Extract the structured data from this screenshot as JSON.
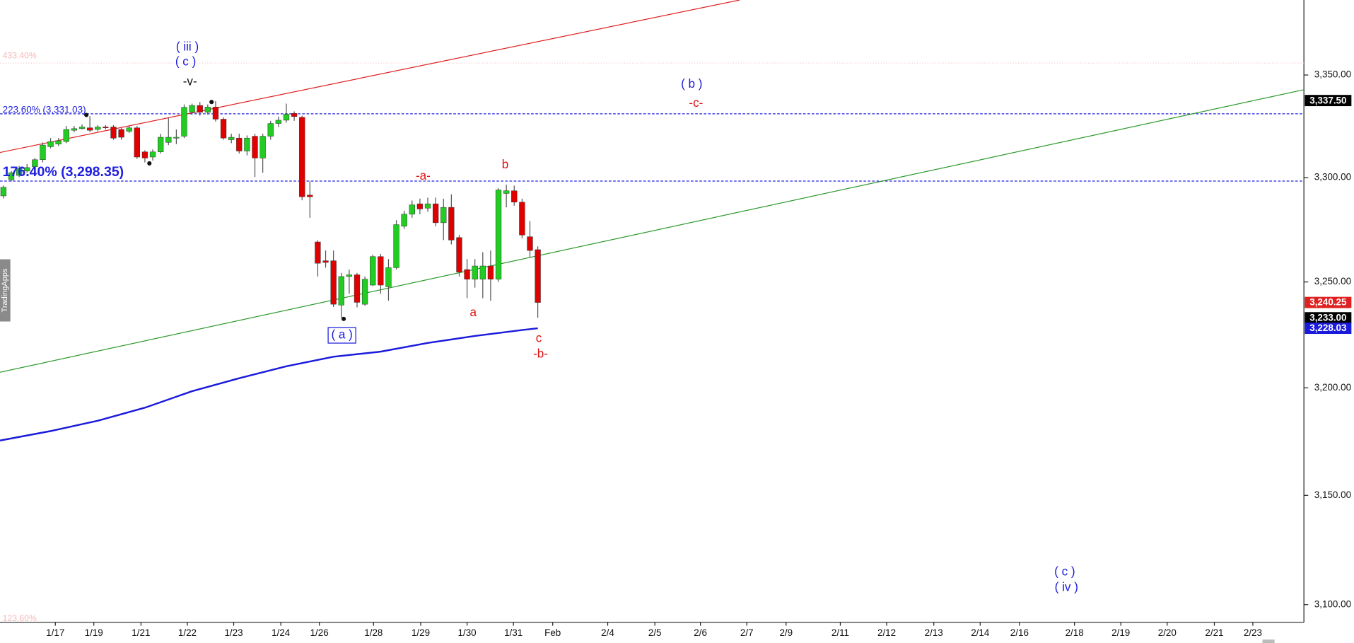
{
  "chart_data": {
    "type": "candlestick",
    "watermark": "TradingApps",
    "log_scale": true,
    "xlim": [
      -0.44,
      165.5
    ],
    "xticks": [
      {
        "value": 6.6,
        "label": "1/17"
      },
      {
        "value": 11.5,
        "label": "1/19"
      },
      {
        "value": 17.5,
        "label": "1/21"
      },
      {
        "value": 23.4,
        "label": "1/22"
      },
      {
        "value": 29.3,
        "label": "1/23"
      },
      {
        "value": 35.3,
        "label": "1/24"
      },
      {
        "value": 40.2,
        "label": "1/26"
      },
      {
        "value": 47.1,
        "label": "1/28"
      },
      {
        "value": 53.1,
        "label": "1/29"
      },
      {
        "value": 59.0,
        "label": "1/30"
      },
      {
        "value": 64.9,
        "label": "1/31"
      },
      {
        "value": 69.9,
        "label": "Feb"
      },
      {
        "value": 76.9,
        "label": "2/4"
      },
      {
        "value": 82.9,
        "label": "2/5"
      },
      {
        "value": 88.7,
        "label": "2/6"
      },
      {
        "value": 94.6,
        "label": "2/7"
      },
      {
        "value": 99.6,
        "label": "2/9"
      },
      {
        "value": 106.5,
        "label": "2/11"
      },
      {
        "value": 112.4,
        "label": "2/12"
      },
      {
        "value": 118.4,
        "label": "2/13"
      },
      {
        "value": 124.3,
        "label": "2/14"
      },
      {
        "value": 129.3,
        "label": "2/16"
      },
      {
        "value": 136.3,
        "label": "2/18"
      },
      {
        "value": 142.2,
        "label": "2/19"
      },
      {
        "value": 148.1,
        "label": "2/20"
      },
      {
        "value": 154.1,
        "label": "2/21"
      },
      {
        "value": 159.0,
        "label": "2/23"
      }
    ],
    "ylim": [
      3092,
      3387
    ],
    "yticks": [
      {
        "value": 3100,
        "label": "3,100.00"
      },
      {
        "value": 3150,
        "label": "3,150.00"
      },
      {
        "value": 3200,
        "label": "3,200.00"
      },
      {
        "value": 3250,
        "label": "3,250.00"
      },
      {
        "value": 3300,
        "label": "3,300.00"
      },
      {
        "value": 3350,
        "label": "3,350.00"
      }
    ],
    "up_color": "#22cc22",
    "down_color": "#e00000",
    "x": [
      0,
      1,
      2,
      3,
      4,
      5,
      6,
      7,
      8,
      9,
      10,
      11,
      12,
      13,
      14,
      15,
      16,
      17,
      18,
      19,
      20,
      21,
      22,
      23,
      24,
      25,
      26,
      27,
      28,
      29,
      30,
      31,
      32,
      33,
      34,
      35,
      36,
      37,
      38,
      39,
      40,
      41,
      42,
      43,
      44,
      45,
      46,
      47,
      48,
      49,
      50,
      51,
      52,
      53,
      54,
      55,
      56,
      57,
      58,
      59,
      60,
      61,
      62,
      63,
      64,
      65,
      66,
      67,
      68
    ],
    "open": [
      3291.2,
      3299,
      3301.1,
      3303.2,
      3305.3,
      3308.7,
      3315,
      3316.3,
      3317.5,
      3323,
      3323.8,
      3324.2,
      3323.4,
      3324.6,
      3324.6,
      3323.4,
      3322.5,
      3324.2,
      3312.5,
      3310,
      3312.5,
      3317.1,
      3319.2,
      3320.1,
      3331.8,
      3335.1,
      3331.8,
      3334.3,
      3328.4,
      3318.4,
      3319.2,
      3312.9,
      3320.1,
      3309.5,
      3320.1,
      3326.3,
      3327.9,
      3331.2,
      3329.3,
      3291.6,
      3269.1,
      3260.1,
      3260.1,
      3239,
      3252.6,
      3253.4,
      3239.4,
      3248.5,
      3262.1,
      3247.7,
      3256.8,
      3276.6,
      3282.4,
      3287.4,
      3285.3,
      3287.4,
      3278.3,
      3285.7,
      3271.2,
      3255.9,
      3251.3,
      3251.3,
      3257.6,
      3251.3,
      3292.4,
      3293.7,
      3288.2,
      3271.6,
      3265.4
    ],
    "high": [
      3296.2,
      3303.2,
      3305.7,
      3306.6,
      3309.5,
      3317.1,
      3319.2,
      3319.2,
      3325.1,
      3325.1,
      3325.9,
      3329.9,
      3325.5,
      3325.5,
      3325.5,
      3324.2,
      3325.1,
      3325.1,
      3313.3,
      3313.7,
      3321.3,
      3329.1,
      3323.4,
      3335.6,
      3336,
      3336.8,
      3335.6,
      3337.2,
      3329.3,
      3321.3,
      3321.3,
      3320.5,
      3321.3,
      3321.3,
      3327.6,
      3329.7,
      3336,
      3332.2,
      3330.1,
      3298.2,
      3269.9,
      3265,
      3265,
      3254.3,
      3255.9,
      3254.3,
      3252.6,
      3263,
      3263.4,
      3260.9,
      3279.5,
      3284.1,
      3289,
      3289.9,
      3290.4,
      3290.4,
      3289.9,
      3292,
      3272.4,
      3260.9,
      3260.9,
      3264.2,
      3265,
      3294.9,
      3296.6,
      3296.2,
      3289.9,
      3279.1,
      3267
    ],
    "low": [
      3290,
      3298.2,
      3300.3,
      3302.4,
      3304,
      3307.4,
      3314.2,
      3315.4,
      3316.7,
      3322.1,
      3323.4,
      3322.1,
      3322.5,
      3323.4,
      3318.4,
      3318.4,
      3321.7,
      3309.1,
      3307.4,
      3308.3,
      3311.7,
      3315.8,
      3316.3,
      3319.2,
      3330.6,
      3330.1,
      3330.6,
      3327.2,
      3318.4,
      3316.7,
      3311.7,
      3310.8,
      3300.3,
      3302.4,
      3318.4,
      3324.6,
      3326.7,
      3327.6,
      3289.1,
      3280.7,
      3252.6,
      3256.8,
      3238.1,
      3232.9,
      3244.4,
      3237.9,
      3238.7,
      3248.1,
      3244.4,
      3241.1,
      3255.9,
      3275.3,
      3280.7,
      3282.4,
      3283.6,
      3276.6,
      3270,
      3267.9,
      3252.6,
      3242.3,
      3247.3,
      3242.3,
      3241.1,
      3250,
      3285.7,
      3286.5,
      3270.8,
      3261.7,
      3233
    ],
    "close": [
      3295.4,
      3302.4,
      3304.5,
      3304.9,
      3308.7,
      3315.8,
      3317.5,
      3317.9,
      3323.4,
      3323.8,
      3324.6,
      3323,
      3324.6,
      3324.2,
      3319.2,
      3319.6,
      3324.2,
      3310,
      3309.5,
      3312.5,
      3319.6,
      3319.6,
      3319.6,
      3334.2,
      3335.1,
      3331.8,
      3334.3,
      3328.4,
      3319.2,
      3319.6,
      3312.9,
      3319.2,
      3309.5,
      3320.1,
      3326.3,
      3327.9,
      3330.8,
      3329.7,
      3290.8,
      3290.8,
      3258.9,
      3259.3,
      3239.4,
      3252.6,
      3253.4,
      3240.3,
      3251.3,
      3262.1,
      3248.5,
      3256.8,
      3277.4,
      3282.4,
      3286.9,
      3284.9,
      3287.4,
      3278.3,
      3285.7,
      3270,
      3254.7,
      3251.3,
      3257.6,
      3257.6,
      3251.3,
      3294.1,
      3293.7,
      3288.2,
      3272.4,
      3265,
      3240.25
    ],
    "lines": [
      {
        "color": "#1a1adb",
        "x": [
          -0.44,
          6,
          12,
          18,
          24,
          30,
          36,
          42,
          48,
          54,
          60,
          66,
          68
        ],
        "values": [
          3175.4,
          3179.8,
          3184.6,
          3190.7,
          3198.4,
          3204.5,
          3210.1,
          3214.6,
          3217.0,
          3221.1,
          3224.4,
          3227.2,
          3228.03
        ]
      }
    ],
    "trendlines": [
      {
        "color": "#e02020",
        "x": [
          -0.44,
          93.7
        ],
        "values": [
          3312.2,
          3387
        ]
      },
      {
        "color": "#2e9a2e",
        "x": [
          -0.44,
          165.5
        ],
        "values": [
          3207.3,
          3342.8
        ]
      }
    ],
    "levels": [
      {
        "value": 3331.03,
        "label": "223.60% (3,331.03)",
        "color": "#2020e0"
      },
      {
        "value": 3298.35,
        "label": "176.40% (3,298.35)",
        "color": "#2020e0"
      }
    ],
    "price_tags": [
      {
        "value": 3337.5,
        "label": "3,337.50",
        "color": "#000000"
      },
      {
        "value": 3240.25,
        "label": "3,240.25",
        "color": "#e02020"
      },
      {
        "value": 3233,
        "label": "3,233.00",
        "color": "#000000"
      },
      {
        "value": 3228.03,
        "label": "3,228.03",
        "color": "#1a1adb"
      }
    ],
    "faint_labels": [
      "433.40%",
      "123.60%"
    ],
    "annotations": [
      {
        "text": "( iii )",
        "color": "#1a1adb"
      },
      {
        "text": "( c )",
        "color": "#1a1adb"
      },
      {
        "text": "-v-",
        "color": "#111111"
      },
      {
        "text": "( b )",
        "color": "#1a1adb"
      },
      {
        "text": "-c-",
        "color": "#e01010"
      },
      {
        "text": "-a-",
        "color": "#e01010"
      },
      {
        "text": "b",
        "color": "#e01010"
      },
      {
        "text": "a",
        "color": "#e01010"
      },
      {
        "text": "c",
        "color": "#e01010"
      },
      {
        "text": "-b-",
        "color": "#e01010"
      },
      {
        "text": "( a )",
        "color": "#1a1adb"
      },
      {
        "text": "( c )",
        "color": "#1a1adb"
      },
      {
        "text": "( iv )",
        "color": "#1a1adb"
      }
    ]
  }
}
